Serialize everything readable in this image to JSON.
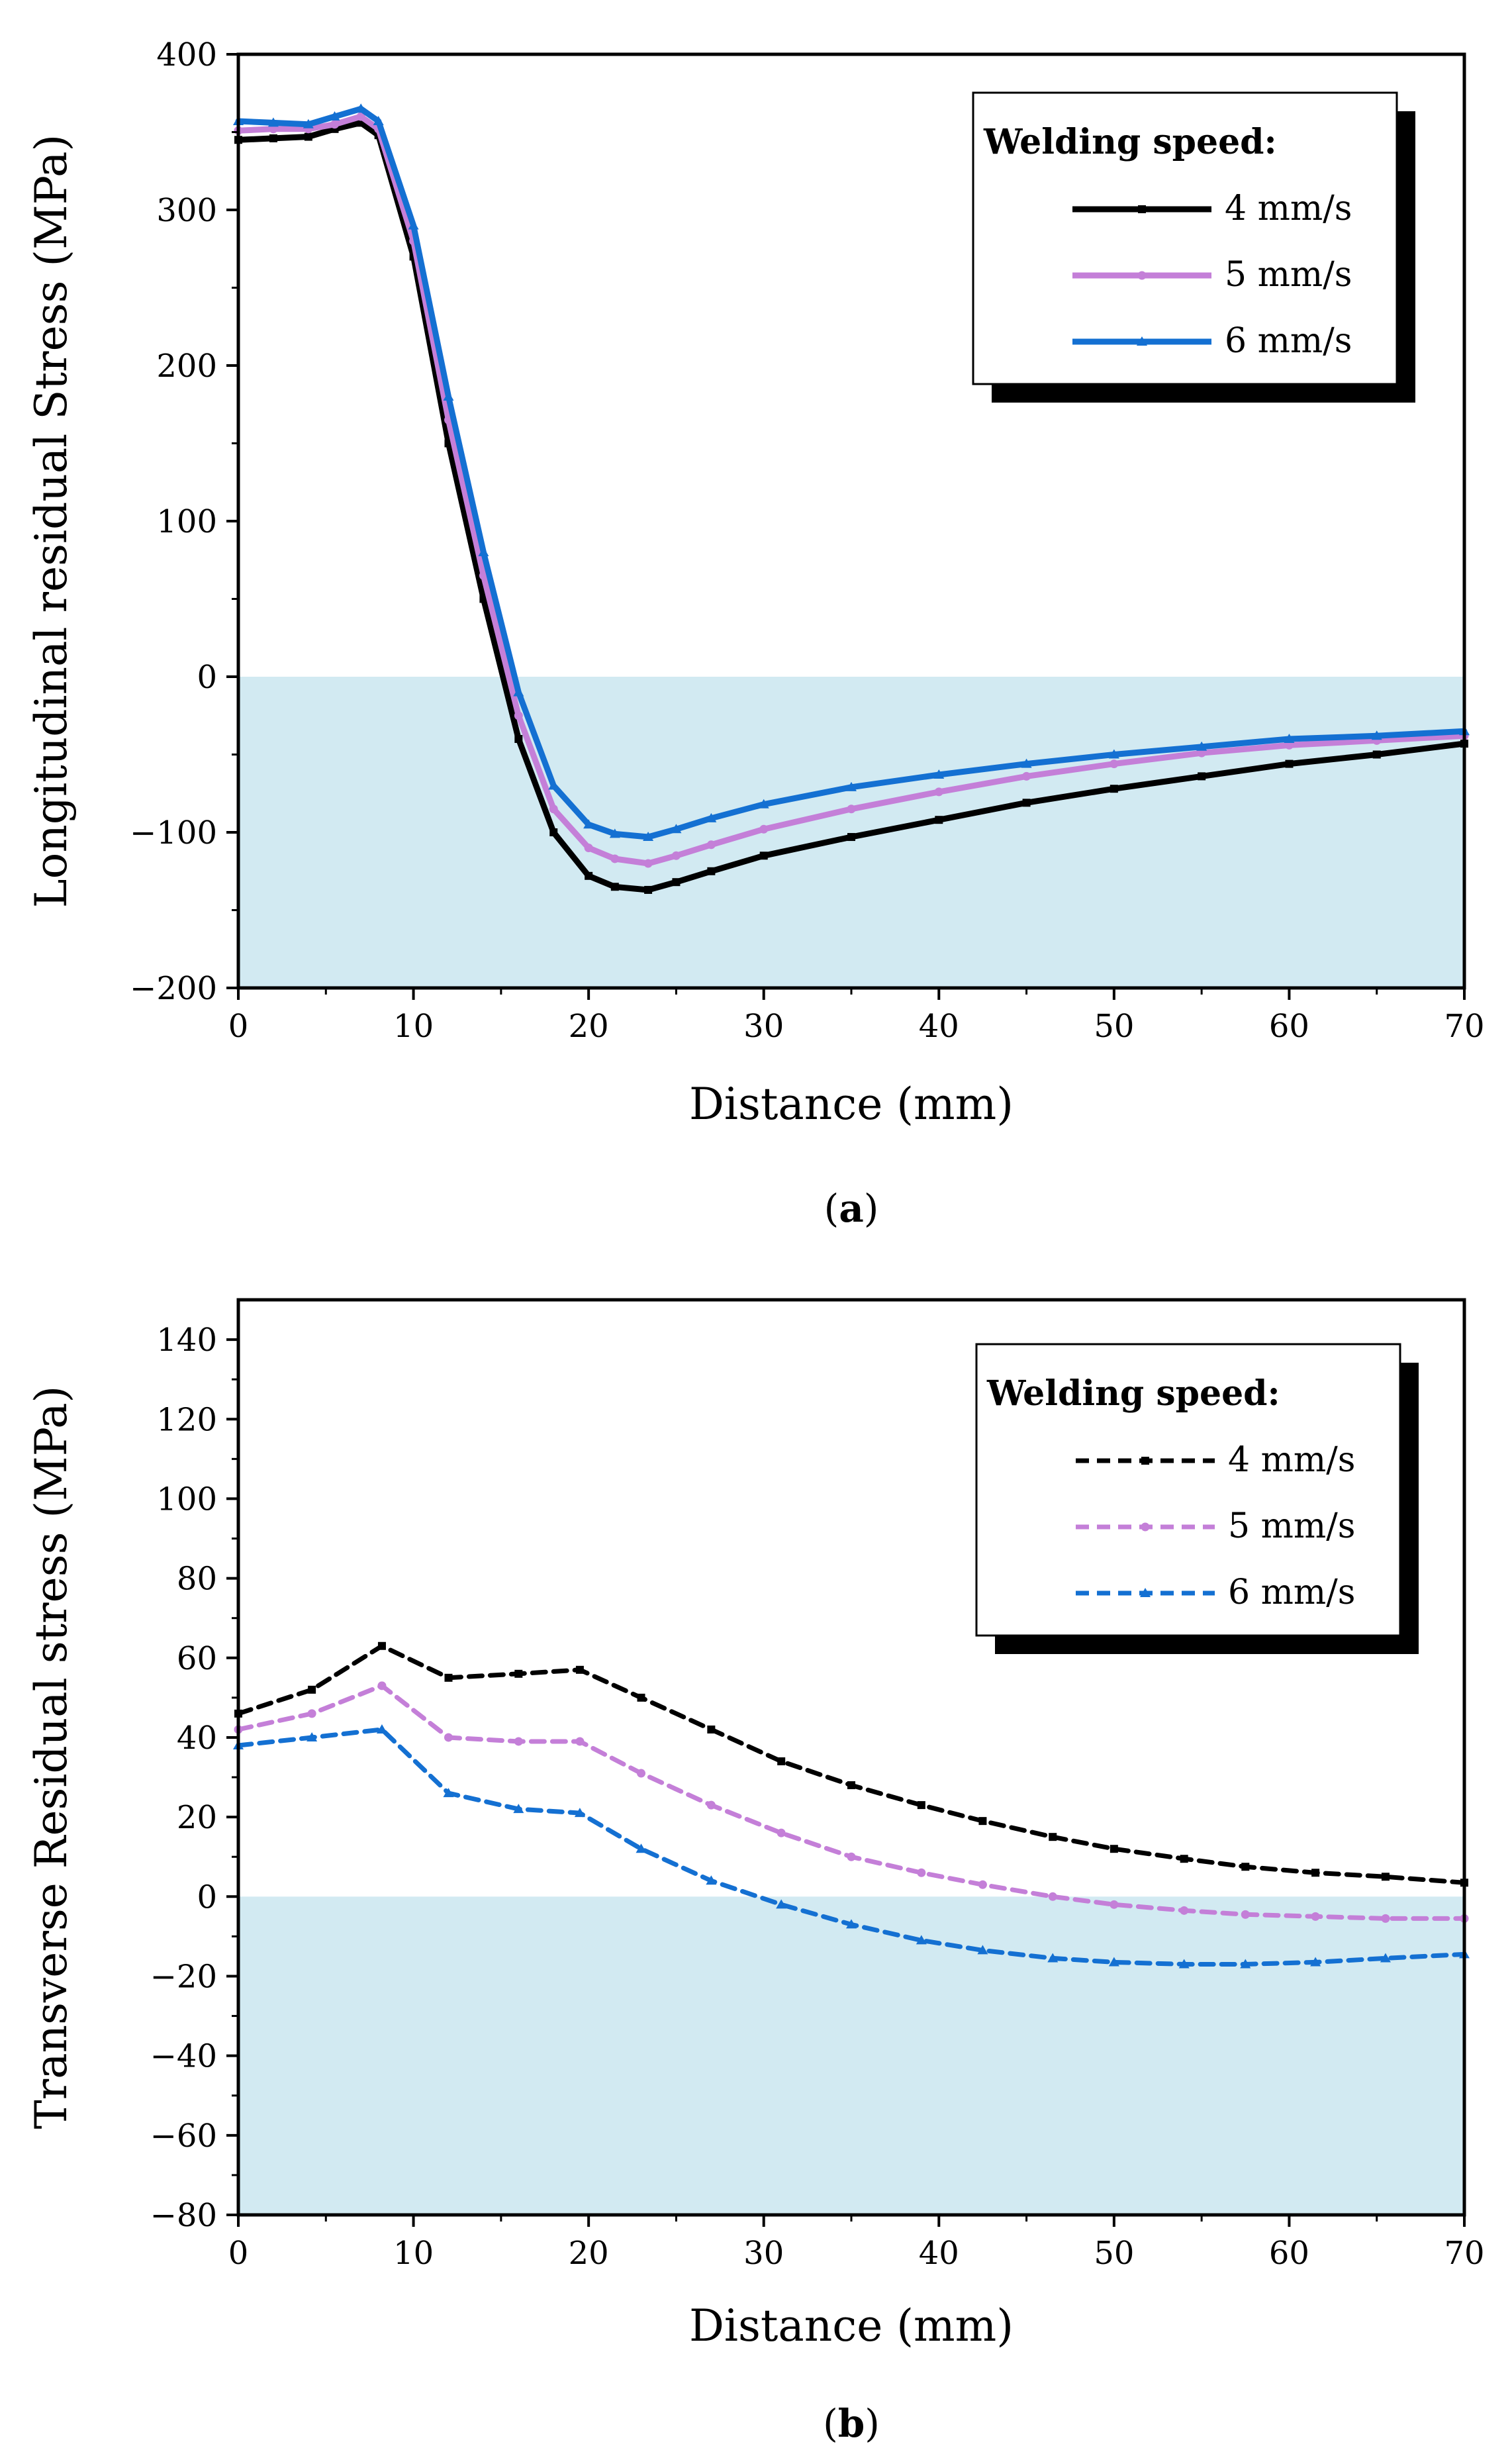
{
  "chart_data": [
    {
      "id": "a",
      "type": "line",
      "panel_label": "a",
      "xlabel": "Distance (mm)",
      "ylabel": "Longitudinal residual Stress (MPa)",
      "xlim": [
        0,
        70
      ],
      "ylim": [
        -200,
        400
      ],
      "xticks": [
        0,
        10,
        20,
        30,
        40,
        50,
        60,
        70
      ],
      "yticks": [
        -200,
        -100,
        0,
        100,
        200,
        300,
        400
      ],
      "ytick_labels": [
        "−200",
        "−100",
        "0",
        "100",
        "200",
        "300",
        "400"
      ],
      "negative_region_color": "#d2eaf2",
      "line_style": "solid",
      "legend": {
        "title": "Welding speed:",
        "position": "top-right"
      },
      "series": [
        {
          "name": "4 mm/s",
          "label": "4 mm/s",
          "color": "#000000",
          "marker": "square",
          "x": [
            0,
            2,
            4,
            5.5,
            7,
            8,
            10,
            12,
            14,
            16,
            18,
            20,
            21.5,
            23.4,
            25,
            27,
            30,
            35,
            40,
            45,
            50,
            55,
            60,
            65,
            70
          ],
          "y": [
            345,
            346,
            347,
            352,
            356,
            348,
            270,
            150,
            50,
            -40,
            -100,
            -128,
            -135,
            -137,
            -132,
            -125,
            -115,
            -103,
            -92,
            -81,
            -72,
            -64,
            -56,
            -50,
            -43
          ]
        },
        {
          "name": "5 mm/s",
          "label": "5 mm/s",
          "color": "#c47fd8",
          "marker": "circle",
          "x": [
            0,
            2,
            4,
            5.5,
            7,
            8,
            10,
            12,
            14,
            16,
            18,
            20,
            21.5,
            23.4,
            25,
            27,
            30,
            35,
            40,
            45,
            50,
            55,
            60,
            65,
            70
          ],
          "y": [
            351,
            352,
            352,
            355,
            360,
            352,
            280,
            165,
            65,
            -25,
            -85,
            -110,
            -117,
            -120,
            -115,
            -108,
            -98,
            -85,
            -74,
            -64,
            -56,
            -49,
            -44,
            -41,
            -38
          ]
        },
        {
          "name": "6 mm/s",
          "label": "6 mm/s",
          "color": "#1470d2",
          "marker": "triangle",
          "x": [
            0,
            2,
            4,
            5.5,
            7,
            8,
            10,
            12,
            14,
            16,
            18,
            20,
            21.5,
            23.4,
            25,
            27,
            30,
            35,
            40,
            45,
            50,
            55,
            60,
            65,
            70
          ],
          "y": [
            357,
            356,
            355,
            360,
            365,
            357,
            290,
            180,
            80,
            -10,
            -70,
            -95,
            -101,
            -103,
            -98,
            -91,
            -82,
            -71,
            -63,
            -56,
            -50,
            -45,
            -40,
            -38,
            -35
          ]
        }
      ]
    },
    {
      "id": "b",
      "type": "line",
      "panel_label": "b",
      "xlabel": "Distance (mm)",
      "ylabel": "Transverse Residual stress (MPa)",
      "xlim": [
        0,
        70
      ],
      "ylim": [
        -80,
        150
      ],
      "xticks": [
        0,
        10,
        20,
        30,
        40,
        50,
        60,
        70
      ],
      "yticks": [
        -80,
        -60,
        -40,
        -20,
        0,
        20,
        40,
        60,
        80,
        100,
        120,
        140
      ],
      "ytick_labels": [
        "−80",
        "−60",
        "−40",
        "−20",
        "0",
        "20",
        "40",
        "60",
        "80",
        "100",
        "120",
        "140"
      ],
      "negative_region_color": "#d2eaf2",
      "line_style": "dashed",
      "legend": {
        "title": "Welding speed:",
        "position": "top-right"
      },
      "series": [
        {
          "name": "4 mm/s",
          "label": "4 mm/s",
          "color": "#000000",
          "marker": "square",
          "x": [
            0,
            4.2,
            8.2,
            12,
            16,
            19.5,
            23,
            27,
            31,
            35,
            39,
            42.5,
            46.5,
            50,
            54,
            57.5,
            61.5,
            65.5,
            70
          ],
          "y": [
            46,
            52,
            63,
            55,
            56,
            57,
            50,
            42,
            34,
            28,
            23,
            19,
            15,
            12,
            9.5,
            7.5,
            6,
            5,
            3.5
          ]
        },
        {
          "name": "5 mm/s",
          "label": "5 mm/s",
          "color": "#c47fd8",
          "marker": "circle",
          "x": [
            0,
            4.2,
            8.2,
            12,
            16,
            19.5,
            23,
            27,
            31,
            35,
            39,
            42.5,
            46.5,
            50,
            54,
            57.5,
            61.5,
            65.5,
            70
          ],
          "y": [
            42,
            46,
            53,
            40,
            39,
            39,
            31,
            23,
            16,
            10,
            6,
            3,
            0,
            -2,
            -3.5,
            -4.5,
            -5,
            -5.5,
            -5.5
          ]
        },
        {
          "name": "6 mm/s",
          "label": "6 mm/s",
          "color": "#1470d2",
          "marker": "triangle",
          "x": [
            0,
            4.2,
            8.2,
            12,
            16,
            19.5,
            23,
            27,
            31,
            35,
            39,
            42.5,
            46.5,
            50,
            54,
            57.5,
            61.5,
            65.5,
            70
          ],
          "y": [
            38,
            40,
            42,
            26,
            22,
            21,
            12,
            4,
            -2,
            -7,
            -11,
            -13.5,
            -15.5,
            -16.5,
            -17,
            -17,
            -16.5,
            -15.5,
            -14.5
          ]
        }
      ]
    }
  ]
}
